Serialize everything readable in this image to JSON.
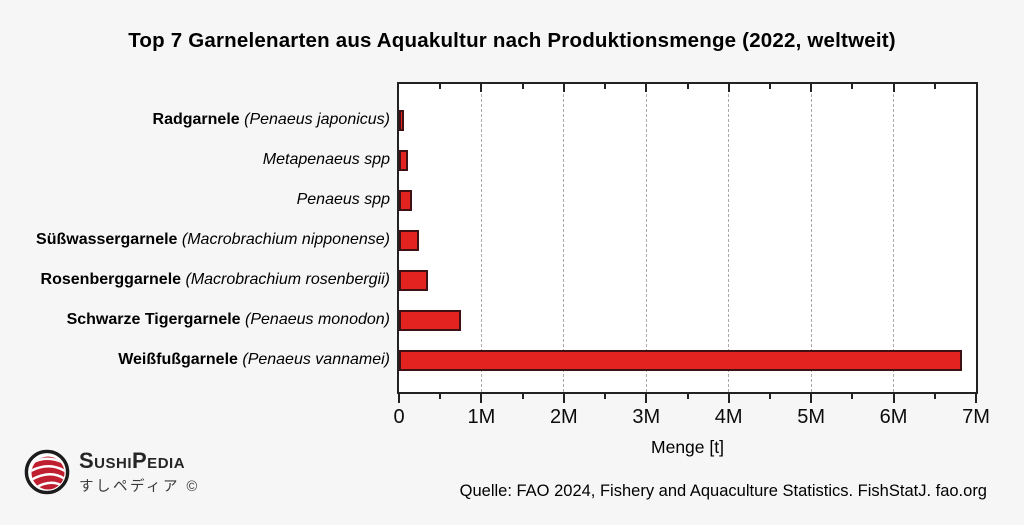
{
  "title": "Top 7 Garnelenarten aus Aquakultur nach Produktionsmenge (2022, weltweit)",
  "chart_data": {
    "type": "bar",
    "orientation": "horizontal",
    "title": "Top 7 Garnelenarten aus Aquakultur nach Produktionsmenge (2022, weltweit)",
    "xlabel": "Menge [t]",
    "unit": "t",
    "xlim": [
      0,
      7000000
    ],
    "x_tick_labels": [
      "0",
      "1M",
      "2M",
      "3M",
      "4M",
      "5M",
      "6M",
      "7M"
    ],
    "x_major_tick_step": 1000000,
    "x_minor_tick_step": 500000,
    "grid": "vertical dashed gridlines at major ticks",
    "legend": "none",
    "categories": [
      {
        "label_bold": "Radgarnele",
        "label_italic": "Penaeus japonicus",
        "parenthesized": true,
        "value": 55000
      },
      {
        "label_bold": "",
        "label_italic": "Metapenaeus spp",
        "parenthesized": false,
        "value": 115000
      },
      {
        "label_bold": "",
        "label_italic": "Penaeus spp",
        "parenthesized": false,
        "value": 160000
      },
      {
        "label_bold": "Süßwassergarnele",
        "label_italic": "Macrobrachium nipponense",
        "parenthesized": true,
        "value": 240000
      },
      {
        "label_bold": "Rosenberggarnele",
        "label_italic": "Macrobrachium rosenbergii",
        "parenthesized": true,
        "value": 350000
      },
      {
        "label_bold": "Schwarze Tigergarnele",
        "label_italic": "Penaeus monodon",
        "parenthesized": true,
        "value": 755000
      },
      {
        "label_bold": "Weißfußgarnele",
        "label_italic": "Penaeus vannamei",
        "parenthesized": true,
        "value": 6830000
      }
    ],
    "colors": {
      "bar_fill": "#e32320",
      "bar_border": "#3f1014",
      "grid": "#ababab",
      "frame": "#222222",
      "background": "#f6f6f6",
      "plot_background": "#ffffff"
    }
  },
  "footer": {
    "source": "Quelle: FAO 2024, Fishery and Aquaculture Statistics. FishStatJ. fao.org"
  },
  "logo": {
    "brand": "SushiPedia",
    "subtitle": "すしペディア ©",
    "icon": "sushi-roll-icon",
    "icon_color": "#bf1f2e"
  }
}
